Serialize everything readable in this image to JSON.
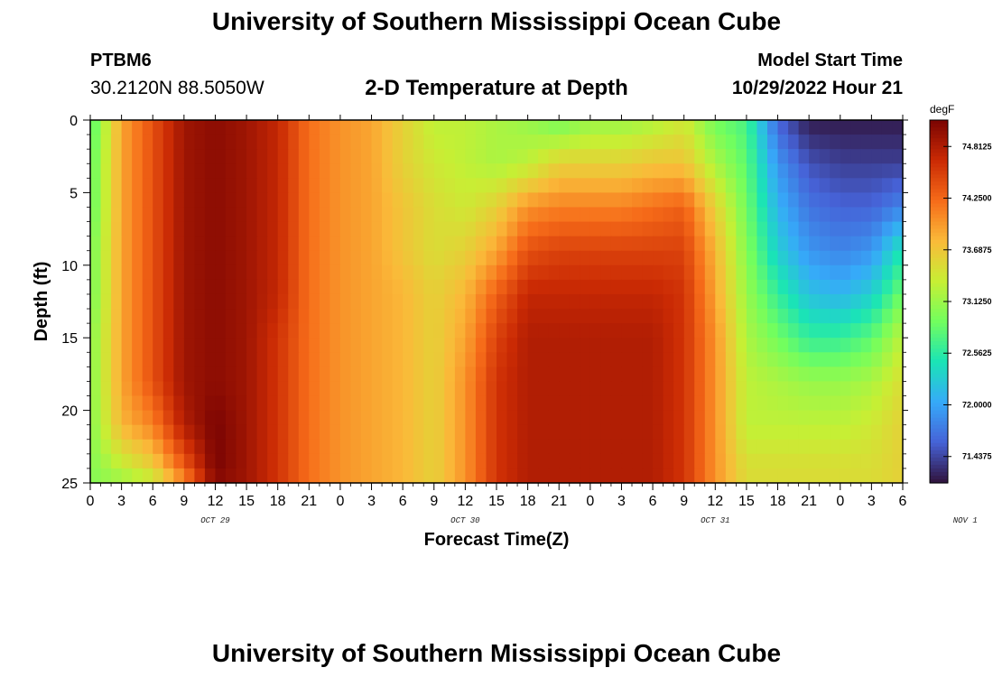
{
  "header": {
    "title": "University of Southern Mississippi Ocean Cube",
    "station_id": "PTBM6",
    "station_coords": "30.2120N  88.5050W",
    "plot_title": "2-D Temperature at Depth",
    "model_start_label": "Model Start Time",
    "model_start_value": "10/29/2022 Hour 21"
  },
  "footer": {
    "title": "University of Southern Mississippi Ocean Cube"
  },
  "chart_data": {
    "type": "heatmap",
    "title": "2-D Temperature at Depth",
    "xlabel": "Forecast Time(Z)",
    "ylabel": "Depth (ft)",
    "x_tick_labels": [
      "0",
      "3",
      "6",
      "9",
      "12",
      "15",
      "18",
      "21",
      "0",
      "3",
      "6",
      "9",
      "12",
      "15",
      "18",
      "21",
      "0",
      "3",
      "6",
      "9",
      "12",
      "15",
      "18",
      "21",
      "0",
      "3",
      "6"
    ],
    "date_labels": [
      "OCT 29",
      "OCT 30",
      "OCT 31",
      "NOV 1"
    ],
    "y_tick_labels": [
      "0",
      "5",
      "10",
      "15",
      "20",
      "25"
    ],
    "ylim": [
      0,
      25
    ],
    "y_inverted": true,
    "x_range_hours": [
      0,
      78
    ],
    "colorbar": {
      "unit": "degF",
      "tick_labels": [
        "74.8125",
        "74.2500",
        "73.6875",
        "73.1250",
        "72.5625",
        "72.0000",
        "71.4375"
      ],
      "min": 71.15,
      "max": 75.1,
      "colors": [
        "#30123b",
        "#4662d7",
        "#36aaf9",
        "#1ae4b6",
        "#72fe5e",
        "#c7ef34",
        "#faba39",
        "#f66b19",
        "#ca2a04",
        "#7a0403"
      ]
    },
    "depths_ft": [
      0,
      3,
      6,
      9,
      12,
      15,
      18,
      21,
      24,
      25
    ],
    "hours": [
      0,
      3,
      6,
      9,
      12,
      15,
      18,
      21,
      24,
      27,
      30,
      33,
      36,
      39,
      42,
      45,
      48,
      51,
      54,
      57,
      60,
      63,
      66,
      69,
      72,
      75,
      78
    ],
    "temperature_degF": [
      [
        72.7,
        73.9,
        74.4,
        74.9,
        75.0,
        74.9,
        74.7,
        74.2,
        74.0,
        73.9,
        73.6,
        73.3,
        73.3,
        73.2,
        73.1,
        72.9,
        73.1,
        73.1,
        73.2,
        73.4,
        72.9,
        72.7,
        71.6,
        71.2,
        71.2,
        71.2,
        71.2
      ],
      [
        72.8,
        73.9,
        74.4,
        74.9,
        75.0,
        74.9,
        74.7,
        74.2,
        74.0,
        73.9,
        73.6,
        73.4,
        73.3,
        73.2,
        73.3,
        73.6,
        73.6,
        73.6,
        73.7,
        73.7,
        73.2,
        72.8,
        71.9,
        71.5,
        71.4,
        71.4,
        71.4
      ],
      [
        72.8,
        73.9,
        74.4,
        74.9,
        75.0,
        74.9,
        74.7,
        74.2,
        74.0,
        73.9,
        73.7,
        73.5,
        73.4,
        73.6,
        74.0,
        74.1,
        74.1,
        74.1,
        74.2,
        74.3,
        73.6,
        72.9,
        72.1,
        71.7,
        71.6,
        71.6,
        71.8
      ],
      [
        72.9,
        73.9,
        74.4,
        74.9,
        75.0,
        74.9,
        74.7,
        74.2,
        74.0,
        73.9,
        73.7,
        73.5,
        73.6,
        73.9,
        74.4,
        74.5,
        74.5,
        74.5,
        74.5,
        74.5,
        73.8,
        73.0,
        72.3,
        71.9,
        71.8,
        71.9,
        72.5
      ],
      [
        72.9,
        73.9,
        74.4,
        74.9,
        75.0,
        74.9,
        74.7,
        74.2,
        74.0,
        73.9,
        73.8,
        73.6,
        73.8,
        74.3,
        74.7,
        74.7,
        74.7,
        74.7,
        74.7,
        74.6,
        73.9,
        73.1,
        72.6,
        72.2,
        72.1,
        72.3,
        72.9
      ],
      [
        73.0,
        73.9,
        74.4,
        74.9,
        75.0,
        74.9,
        74.6,
        74.2,
        74.0,
        73.9,
        73.8,
        73.6,
        73.9,
        74.5,
        74.8,
        74.8,
        74.8,
        74.8,
        74.8,
        74.6,
        74.0,
        73.2,
        72.9,
        72.6,
        72.6,
        72.8,
        73.3
      ],
      [
        73.0,
        73.9,
        74.4,
        74.9,
        75.0,
        74.9,
        74.6,
        74.2,
        74.0,
        73.9,
        73.8,
        73.6,
        74.0,
        74.6,
        74.8,
        74.8,
        74.8,
        74.8,
        74.8,
        74.6,
        74.0,
        73.3,
        73.2,
        73.1,
        73.1,
        73.2,
        73.5
      ],
      [
        73.0,
        73.8,
        74.1,
        74.8,
        75.1,
        74.9,
        74.6,
        74.2,
        74.0,
        73.9,
        73.8,
        73.6,
        74.0,
        74.6,
        74.8,
        74.8,
        74.8,
        74.8,
        74.8,
        74.6,
        74.0,
        73.3,
        73.3,
        73.3,
        73.3,
        73.4,
        73.6
      ],
      [
        73.0,
        73.3,
        73.6,
        74.3,
        75.1,
        74.9,
        74.6,
        74.2,
        74.0,
        73.9,
        73.8,
        73.6,
        74.0,
        74.6,
        74.8,
        74.8,
        74.8,
        74.8,
        74.8,
        74.6,
        74.0,
        73.5,
        73.5,
        73.5,
        73.5,
        73.5,
        73.6
      ],
      [
        73.0,
        73.1,
        73.3,
        74.0,
        75.0,
        74.9,
        74.6,
        74.2,
        74.0,
        73.9,
        73.8,
        73.6,
        74.0,
        74.6,
        74.8,
        74.8,
        74.8,
        74.8,
        74.8,
        74.6,
        74.0,
        73.5,
        73.5,
        73.5,
        73.5,
        73.5,
        73.6
      ]
    ]
  }
}
